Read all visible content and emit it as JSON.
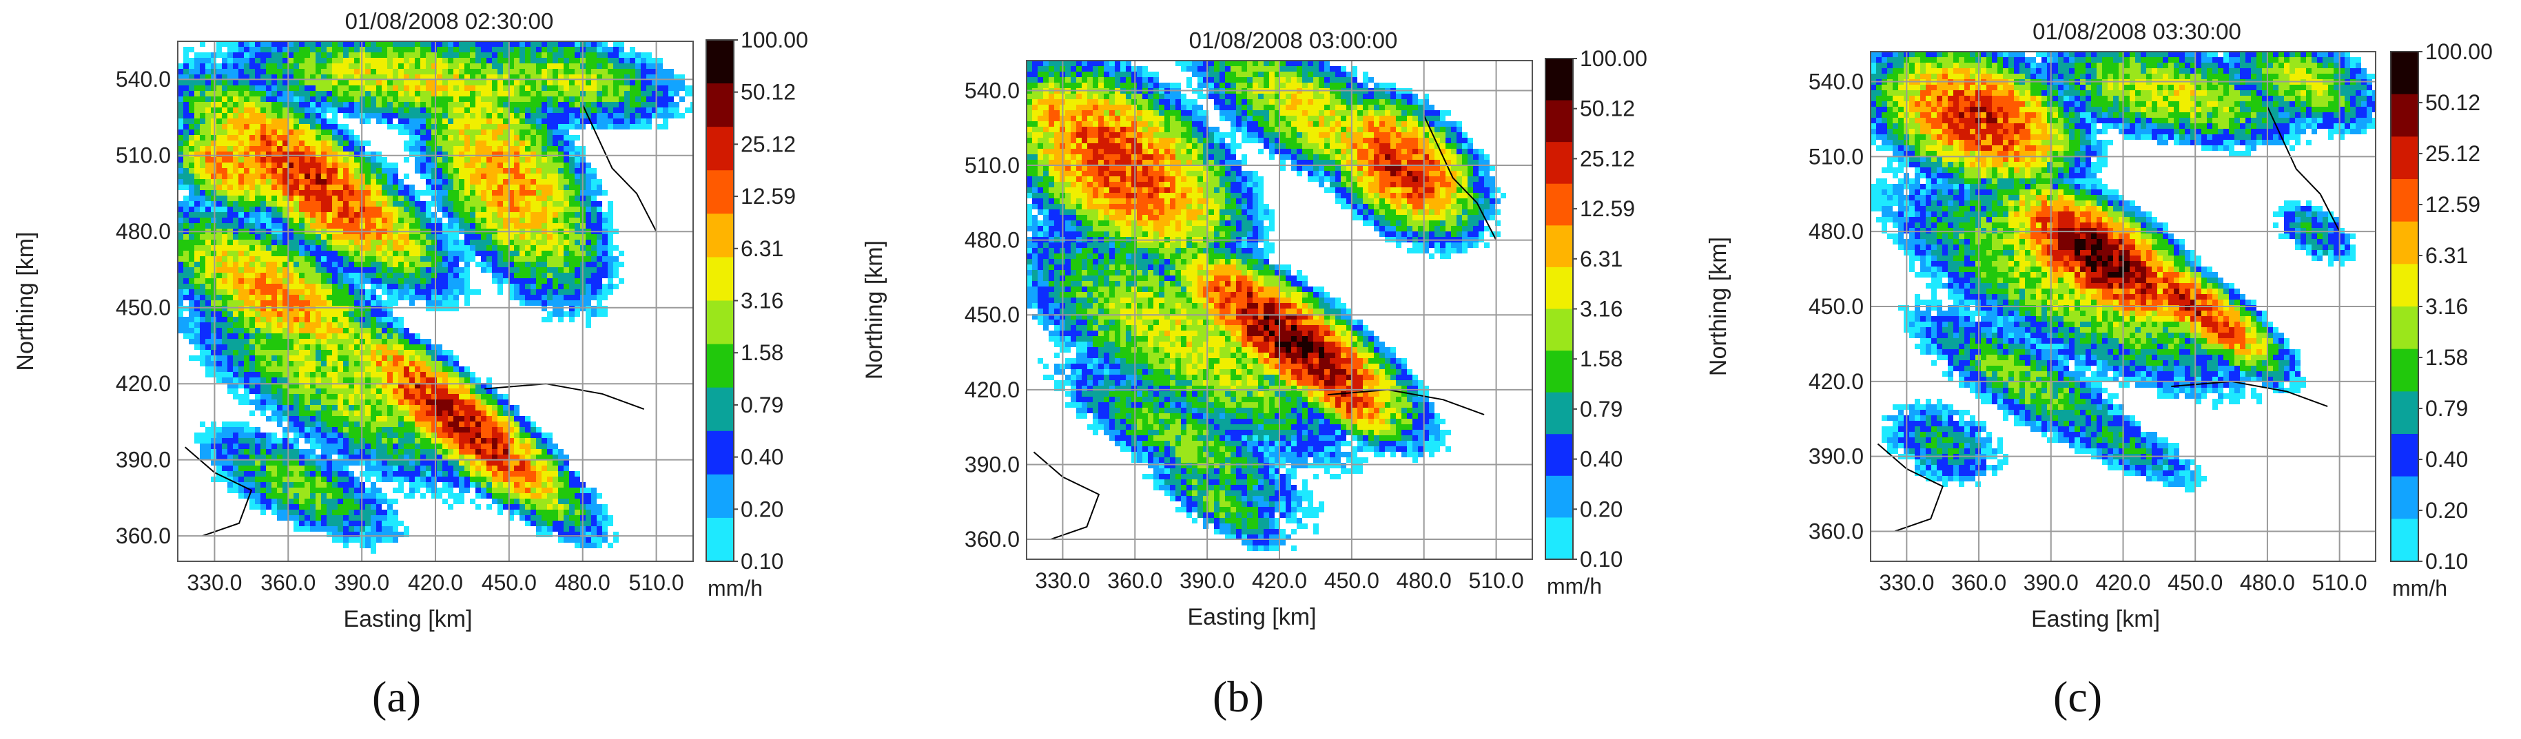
{
  "colorbar": {
    "ticks": [
      "100.00",
      "50.12",
      "25.12",
      "12.59",
      "6.31",
      "3.16",
      "1.58",
      "0.79",
      "0.40",
      "0.20",
      "0.10"
    ],
    "unit": "mm/h",
    "colors": [
      "#1a0000",
      "#7a0000",
      "#d21a00",
      "#ff5a00",
      "#ffb400",
      "#f0ef00",
      "#9be61b",
      "#21c80c",
      "#0aa39a",
      "#0d2dff",
      "#12a4ff",
      "#1ee9ff"
    ]
  },
  "chart_data": [
    {
      "type": "heatmap",
      "title": "01/08/2008 02:30:00",
      "xlabel": "Easting [km]",
      "ylabel": "Northing [km]",
      "xticks": [
        "330.0",
        "360.0",
        "390.0",
        "420.0",
        "450.0",
        "480.0",
        "510.0"
      ],
      "yticks": [
        "540.0",
        "510.0",
        "480.0",
        "450.0",
        "420.0",
        "390.0",
        "360.0"
      ],
      "xlim": [
        315,
        525
      ],
      "ylim": [
        350,
        555
      ],
      "color_scale": "log rain rate 0.10-100.00 mm/h",
      "grid": true,
      "rain_bands": [
        {
          "x": 370,
          "y": 500,
          "rx": 50,
          "ry": 16,
          "angle": 36,
          "peak": 25
        },
        {
          "x": 335,
          "y": 505,
          "rx": 20,
          "ry": 12,
          "angle": 30,
          "peak": 12
        },
        {
          "x": 355,
          "y": 455,
          "rx": 45,
          "ry": 18,
          "angle": 30,
          "peak": 10
        },
        {
          "x": 430,
          "y": 405,
          "rx": 48,
          "ry": 12,
          "angle": 38,
          "peak": 35
        },
        {
          "x": 380,
          "y": 420,
          "rx": 65,
          "ry": 22,
          "angle": 30,
          "peak": 3
        },
        {
          "x": 365,
          "y": 380,
          "rx": 40,
          "ry": 14,
          "angle": 25,
          "peak": 2
        },
        {
          "x": 450,
          "y": 500,
          "rx": 45,
          "ry": 22,
          "angle": 55,
          "peak": 10
        },
        {
          "x": 415,
          "y": 540,
          "rx": 70,
          "ry": 15,
          "angle": 5,
          "peak": 5
        },
        {
          "x": 475,
          "y": 540,
          "rx": 40,
          "ry": 15,
          "angle": 10,
          "peak": 3
        }
      ]
    },
    {
      "type": "heatmap",
      "title": "01/08/2008 03:00:00",
      "xlabel": "Easting [km]",
      "ylabel": "Northing [km]",
      "xticks": [
        "330.0",
        "360.0",
        "390.0",
        "420.0",
        "450.0",
        "480.0",
        "510.0"
      ],
      "yticks": [
        "540.0",
        "510.0",
        "480.0",
        "450.0",
        "420.0",
        "390.0",
        "360.0"
      ],
      "xlim": [
        315,
        525
      ],
      "ylim": [
        352,
        552
      ],
      "color_scale": "log rain rate 0.10-100.00 mm/h",
      "grid": true,
      "rain_bands": [
        {
          "x": 355,
          "y": 510,
          "rx": 45,
          "ry": 25,
          "angle": 35,
          "peak": 20
        },
        {
          "x": 330,
          "y": 530,
          "rx": 20,
          "ry": 15,
          "angle": 20,
          "peak": 10
        },
        {
          "x": 425,
          "y": 440,
          "rx": 45,
          "ry": 14,
          "angle": 35,
          "peak": 55
        },
        {
          "x": 445,
          "y": 420,
          "rx": 25,
          "ry": 10,
          "angle": 35,
          "peak": 25
        },
        {
          "x": 380,
          "y": 440,
          "rx": 70,
          "ry": 25,
          "angle": 30,
          "peak": 4
        },
        {
          "x": 380,
          "y": 400,
          "rx": 55,
          "ry": 15,
          "angle": 30,
          "peak": 2
        },
        {
          "x": 470,
          "y": 510,
          "rx": 30,
          "ry": 18,
          "angle": 35,
          "peak": 25
        },
        {
          "x": 435,
          "y": 530,
          "rx": 50,
          "ry": 18,
          "angle": 30,
          "peak": 5
        },
        {
          "x": 395,
          "y": 375,
          "rx": 30,
          "ry": 10,
          "angle": 30,
          "peak": 2
        }
      ]
    },
    {
      "type": "heatmap",
      "title": "01/08/2008 03:30:00",
      "xlabel": "Easting [km]",
      "ylabel": "Northing [km]",
      "xticks": [
        "330.0",
        "360.0",
        "390.0",
        "420.0",
        "450.0",
        "480.0",
        "510.0"
      ],
      "yticks": [
        "540.0",
        "510.0",
        "480.0",
        "450.0",
        "420.0",
        "390.0",
        "360.0"
      ],
      "xlim": [
        315,
        525
      ],
      "ylim": [
        348,
        552
      ],
      "color_scale": "log rain rate 0.10-100.00 mm/h",
      "grid": true,
      "rain_bands": [
        {
          "x": 360,
          "y": 525,
          "rx": 35,
          "ry": 20,
          "angle": 20,
          "peak": 25
        },
        {
          "x": 410,
          "y": 470,
          "rx": 35,
          "ry": 15,
          "angle": 30,
          "peak": 60
        },
        {
          "x": 450,
          "y": 450,
          "rx": 35,
          "ry": 10,
          "angle": 35,
          "peak": 25
        },
        {
          "x": 400,
          "y": 460,
          "rx": 70,
          "ry": 25,
          "angle": 25,
          "peak": 4
        },
        {
          "x": 380,
          "y": 420,
          "rx": 50,
          "ry": 14,
          "angle": 30,
          "peak": 2
        },
        {
          "x": 420,
          "y": 395,
          "rx": 35,
          "ry": 10,
          "angle": 25,
          "peak": 1
        },
        {
          "x": 345,
          "y": 395,
          "rx": 25,
          "ry": 15,
          "angle": 20,
          "peak": 1
        },
        {
          "x": 440,
          "y": 535,
          "rx": 50,
          "ry": 16,
          "angle": 10,
          "peak": 4
        },
        {
          "x": 495,
          "y": 540,
          "rx": 30,
          "ry": 15,
          "angle": 20,
          "peak": 3
        },
        {
          "x": 500,
          "y": 480,
          "rx": 18,
          "ry": 10,
          "angle": 30,
          "peak": 1
        }
      ]
    }
  ],
  "panel_labels": [
    "(a)",
    "(b)",
    "(c)"
  ]
}
